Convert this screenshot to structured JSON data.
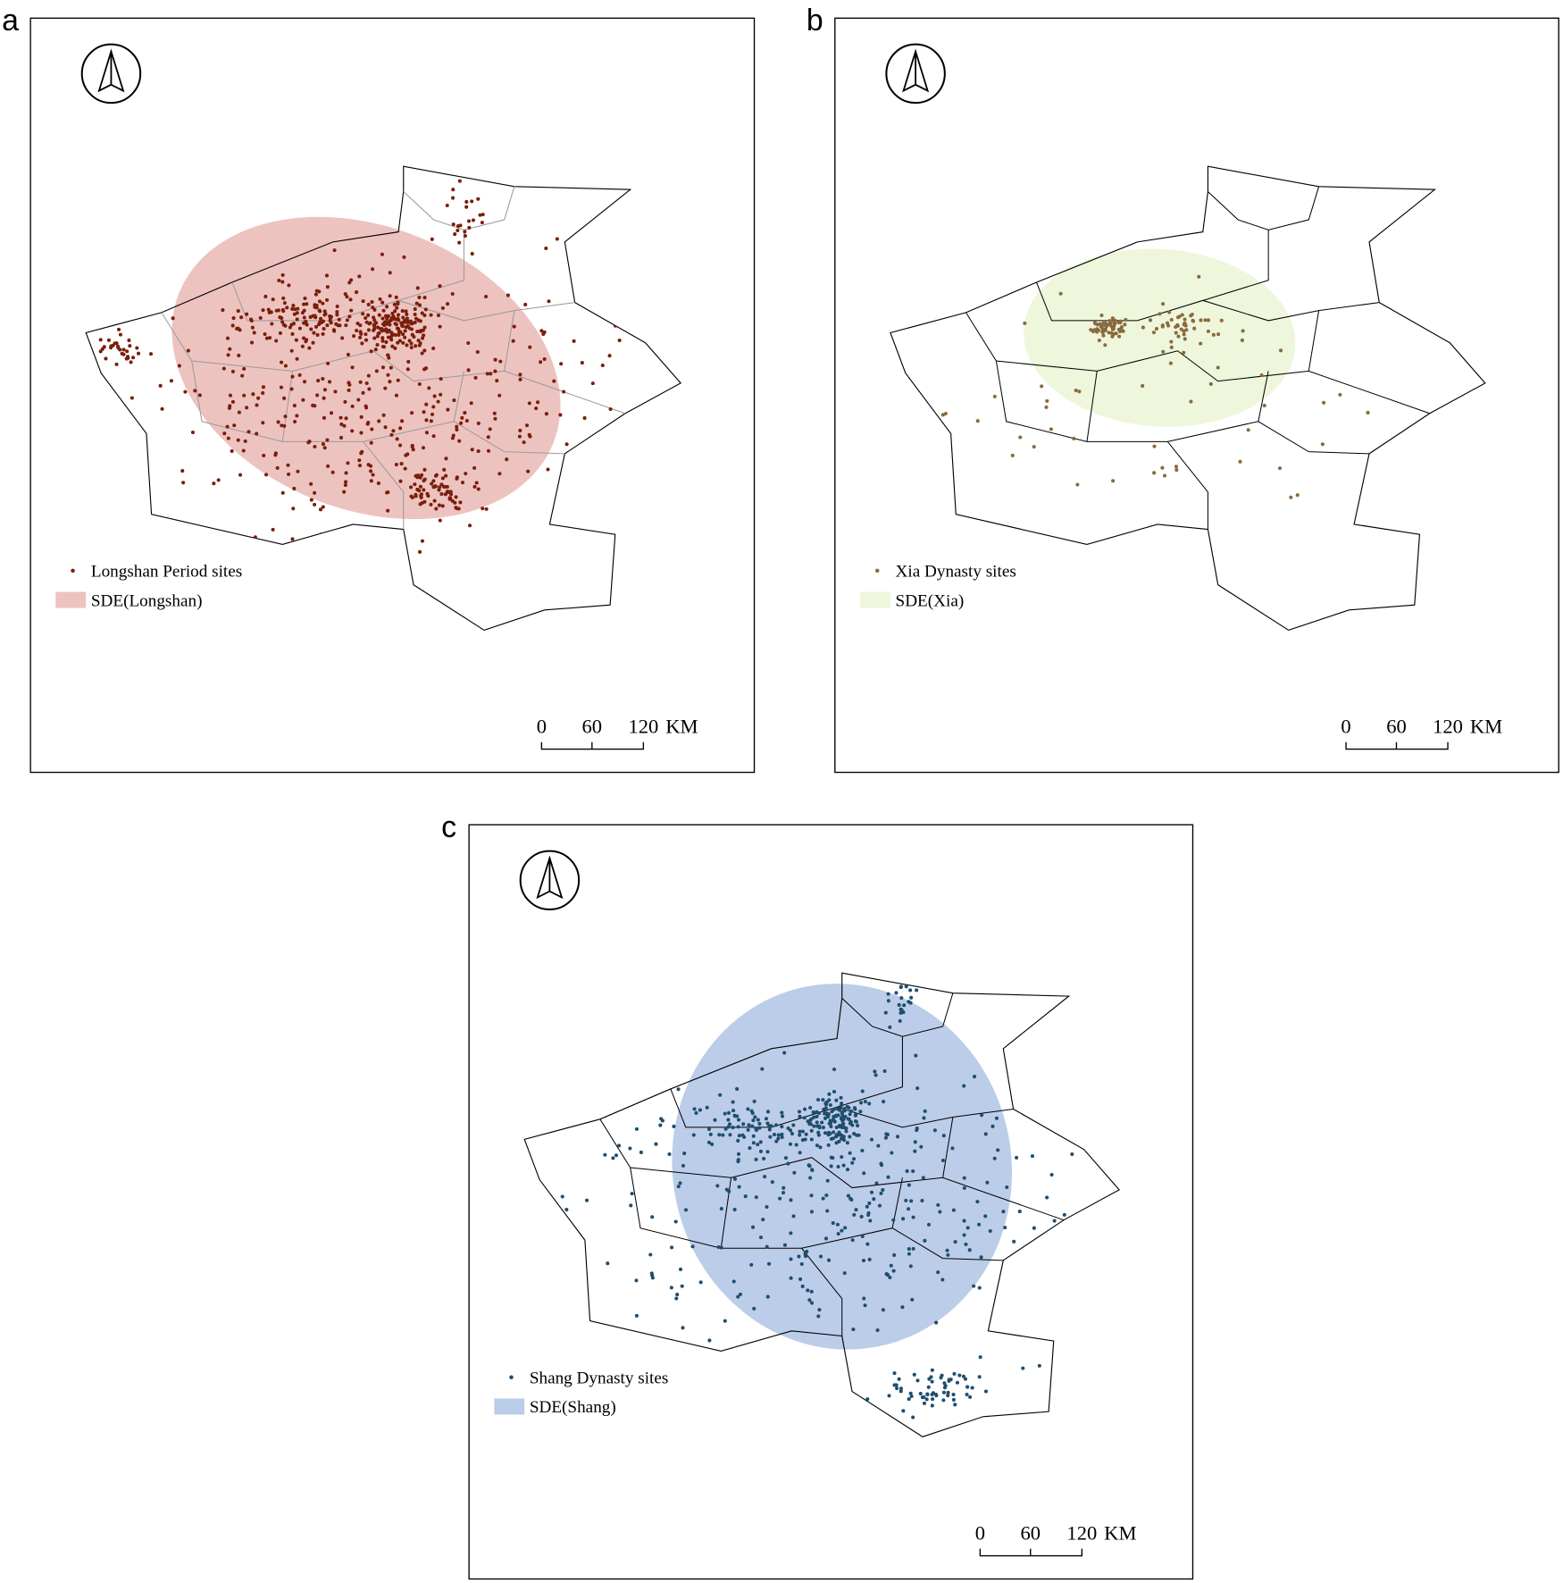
{
  "panels": [
    {
      "letter": "a",
      "legend": {
        "sites": "Longshan Period sites",
        "sde": "SDE(Longshan)"
      },
      "dot_color": "#7a1e0c",
      "sde_color": "#edc3bf",
      "scale": {
        "labels": [
          "0",
          "60",
          "120"
        ],
        "unit": "KM"
      }
    },
    {
      "letter": "b",
      "legend": {
        "sites": "Xia Dynasty sites",
        "sde": "SDE(Xia)"
      },
      "dot_color": "#8a6a3c",
      "sde_color": "#eef6dc",
      "scale": {
        "labels": [
          "0",
          "60",
          "120"
        ],
        "unit": "KM"
      }
    },
    {
      "letter": "c",
      "legend": {
        "sites": "Shang Dynasty sites",
        "sde": "SDE(Shang)"
      },
      "dot_color": "#1e4e6e",
      "sde_color": "#bccde9",
      "scale": {
        "labels": [
          "0",
          "60",
          "120"
        ],
        "unit": "KM"
      }
    }
  ]
}
